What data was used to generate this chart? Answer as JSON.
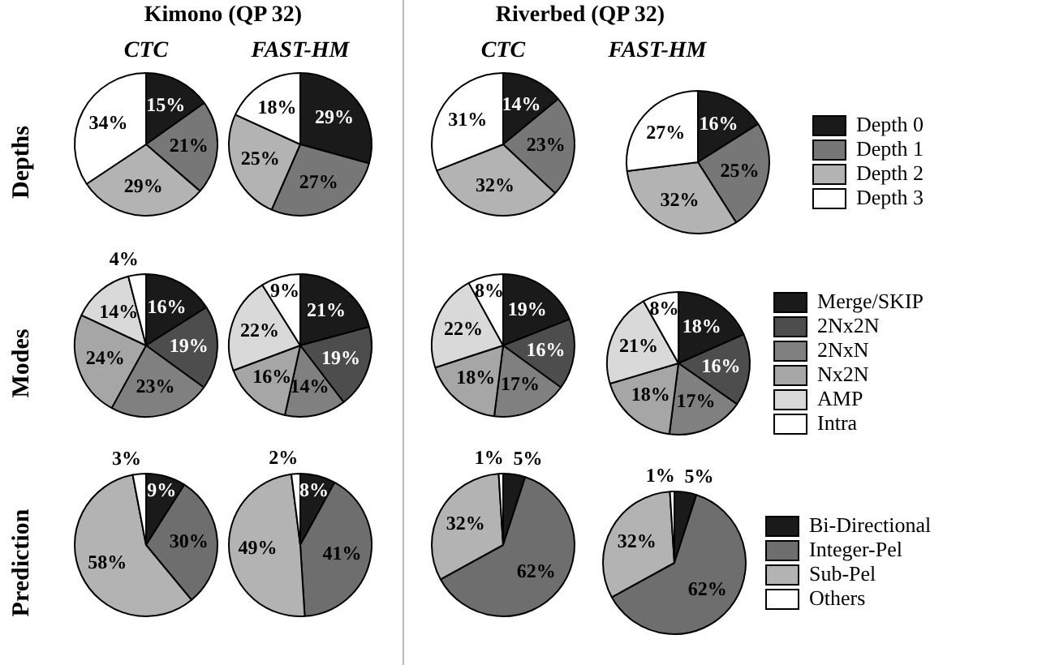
{
  "chart_data": [
    {
      "type": "pie",
      "title": "CTC",
      "ylabel": "Depths",
      "annotations": [
        "Kimono (QP 32)"
      ],
      "categories": [
        null,
        null,
        null,
        null
      ],
      "values": [
        15,
        21,
        29,
        34
      ],
      "value_labels": [
        "15%",
        "21%",
        "29%",
        "34%"
      ],
      "colors": [
        "#1a1a1a",
        "#777777",
        "#b3b3b3",
        "#ffffff"
      ]
    },
    {
      "type": "pie",
      "title": "FAST-HM",
      "categories": [
        null,
        null,
        null,
        null
      ],
      "values": [
        29,
        27,
        25,
        18
      ],
      "value_labels": [
        "29%",
        "27%",
        "25%",
        "18%"
      ],
      "colors": [
        "#1a1a1a",
        "#777777",
        "#b3b3b3",
        "#ffffff"
      ]
    },
    {
      "type": "pie",
      "title": "CTC",
      "annotations": [
        "Riverbed  (QP 32)"
      ],
      "categories": [
        null,
        null,
        null,
        null
      ],
      "values": [
        14,
        23,
        32,
        31
      ],
      "value_labels": [
        "14%",
        "23%",
        "32%",
        "31%"
      ],
      "colors": [
        "#1a1a1a",
        "#777777",
        "#b3b3b3",
        "#ffffff"
      ]
    },
    {
      "type": "pie",
      "title": "FAST-HM",
      "legend": "right",
      "categories": [
        "Depth 0",
        "Depth 1",
        "Depth 2",
        "Depth 3"
      ],
      "values": [
        16,
        25,
        32,
        27
      ],
      "value_labels": [
        "16%",
        "25%",
        "32%",
        "27%"
      ],
      "colors": [
        "#1a1a1a",
        "#777777",
        "#b3b3b3",
        "#ffffff"
      ]
    },
    {
      "type": "pie",
      "ylabel": "Modes",
      "categories": [
        null,
        null,
        null,
        null,
        null,
        null
      ],
      "values": [
        16,
        19,
        23,
        24,
        14,
        4
      ],
      "value_labels": [
        "16%",
        "19%",
        "23%",
        "24%",
        "14%",
        "4%"
      ],
      "colors": [
        "#1a1a1a",
        "#4d4d4d",
        "#808080",
        "#a6a6a6",
        "#d9d9d9",
        "#ffffff"
      ]
    },
    {
      "type": "pie",
      "categories": [
        null,
        null,
        null,
        null,
        null,
        null
      ],
      "values": [
        21,
        19,
        14,
        16,
        22,
        9
      ],
      "value_labels": [
        "21%",
        "19%",
        "14%",
        "16%",
        "22%",
        "9%"
      ],
      "colors": [
        "#1a1a1a",
        "#4d4d4d",
        "#808080",
        "#a6a6a6",
        "#d9d9d9",
        "#ffffff"
      ]
    },
    {
      "type": "pie",
      "categories": [
        null,
        null,
        null,
        null,
        null,
        null
      ],
      "values": [
        19,
        16,
        17,
        18,
        22,
        8
      ],
      "value_labels": [
        "19%",
        "16%",
        "17%",
        "18%",
        "22%",
        "8%"
      ],
      "colors": [
        "#1a1a1a",
        "#4d4d4d",
        "#808080",
        "#a6a6a6",
        "#d9d9d9",
        "#ffffff"
      ]
    },
    {
      "type": "pie",
      "legend": "right",
      "categories": [
        "Merge/SKIP",
        "2Nx2N",
        "2NxN",
        "Nx2N",
        "AMP",
        "Intra"
      ],
      "values": [
        18,
        16,
        17,
        18,
        21,
        8
      ],
      "value_labels": [
        "18%",
        "16%",
        "17%",
        "18%",
        "21%",
        "8%"
      ],
      "colors": [
        "#1a1a1a",
        "#4d4d4d",
        "#808080",
        "#a6a6a6",
        "#d9d9d9",
        "#ffffff"
      ]
    },
    {
      "type": "pie",
      "ylabel": "Prediction",
      "categories": [
        null,
        null,
        null,
        null
      ],
      "values": [
        9,
        30,
        58,
        3
      ],
      "value_labels": [
        "9%",
        "30%",
        "58%",
        "3%"
      ],
      "colors": [
        "#1a1a1a",
        "#6e6e6e",
        "#b3b3b3",
        "#ffffff"
      ]
    },
    {
      "type": "pie",
      "categories": [
        null,
        null,
        null,
        null
      ],
      "values": [
        8,
        41,
        49,
        2
      ],
      "value_labels": [
        "8%",
        "41%",
        "49%",
        "2%"
      ],
      "colors": [
        "#1a1a1a",
        "#6e6e6e",
        "#b3b3b3",
        "#ffffff"
      ]
    },
    {
      "type": "pie",
      "categories": [
        null,
        null,
        null,
        null
      ],
      "values": [
        5,
        62,
        32,
        1
      ],
      "value_labels": [
        "5%",
        "62%",
        "32%",
        "1%"
      ],
      "colors": [
        "#1a1a1a",
        "#6e6e6e",
        "#b3b3b3",
        "#ffffff"
      ]
    },
    {
      "type": "pie",
      "legend": "right",
      "categories": [
        "Bi-Directional",
        "Integer-Pel",
        "Sub-Pel",
        "Others"
      ],
      "values": [
        5,
        62,
        32,
        1
      ],
      "value_labels": [
        "5%",
        "62%",
        "32%",
        "1%"
      ],
      "colors": [
        "#1a1a1a",
        "#6e6e6e",
        "#b3b3b3",
        "#ffffff"
      ]
    }
  ]
}
